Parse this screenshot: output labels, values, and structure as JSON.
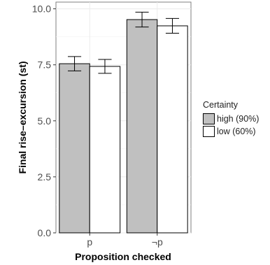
{
  "chart_data": {
    "type": "bar",
    "categories": [
      "p",
      "¬p"
    ],
    "series": [
      {
        "name": "high (90%)",
        "values": [
          7.55,
          9.52
        ],
        "errors": [
          0.32,
          0.33
        ],
        "color": "#c0c0c0"
      },
      {
        "name": "low (60%)",
        "values": [
          7.43,
          9.24
        ],
        "errors": [
          0.31,
          0.33
        ],
        "color": "#ffffff"
      }
    ],
    "xlabel": "Proposition checked",
    "ylabel": "Final rise–excursion (st)",
    "ylim": [
      0,
      10.3
    ],
    "yticks": [
      "0.0",
      "2.5",
      "5.0",
      "7.5",
      "10.0"
    ],
    "ytick_values": [
      0,
      2.5,
      5,
      7.5,
      10
    ],
    "legend": {
      "title": "Certainty",
      "position": "right"
    },
    "grid": true,
    "error_bars": true
  }
}
